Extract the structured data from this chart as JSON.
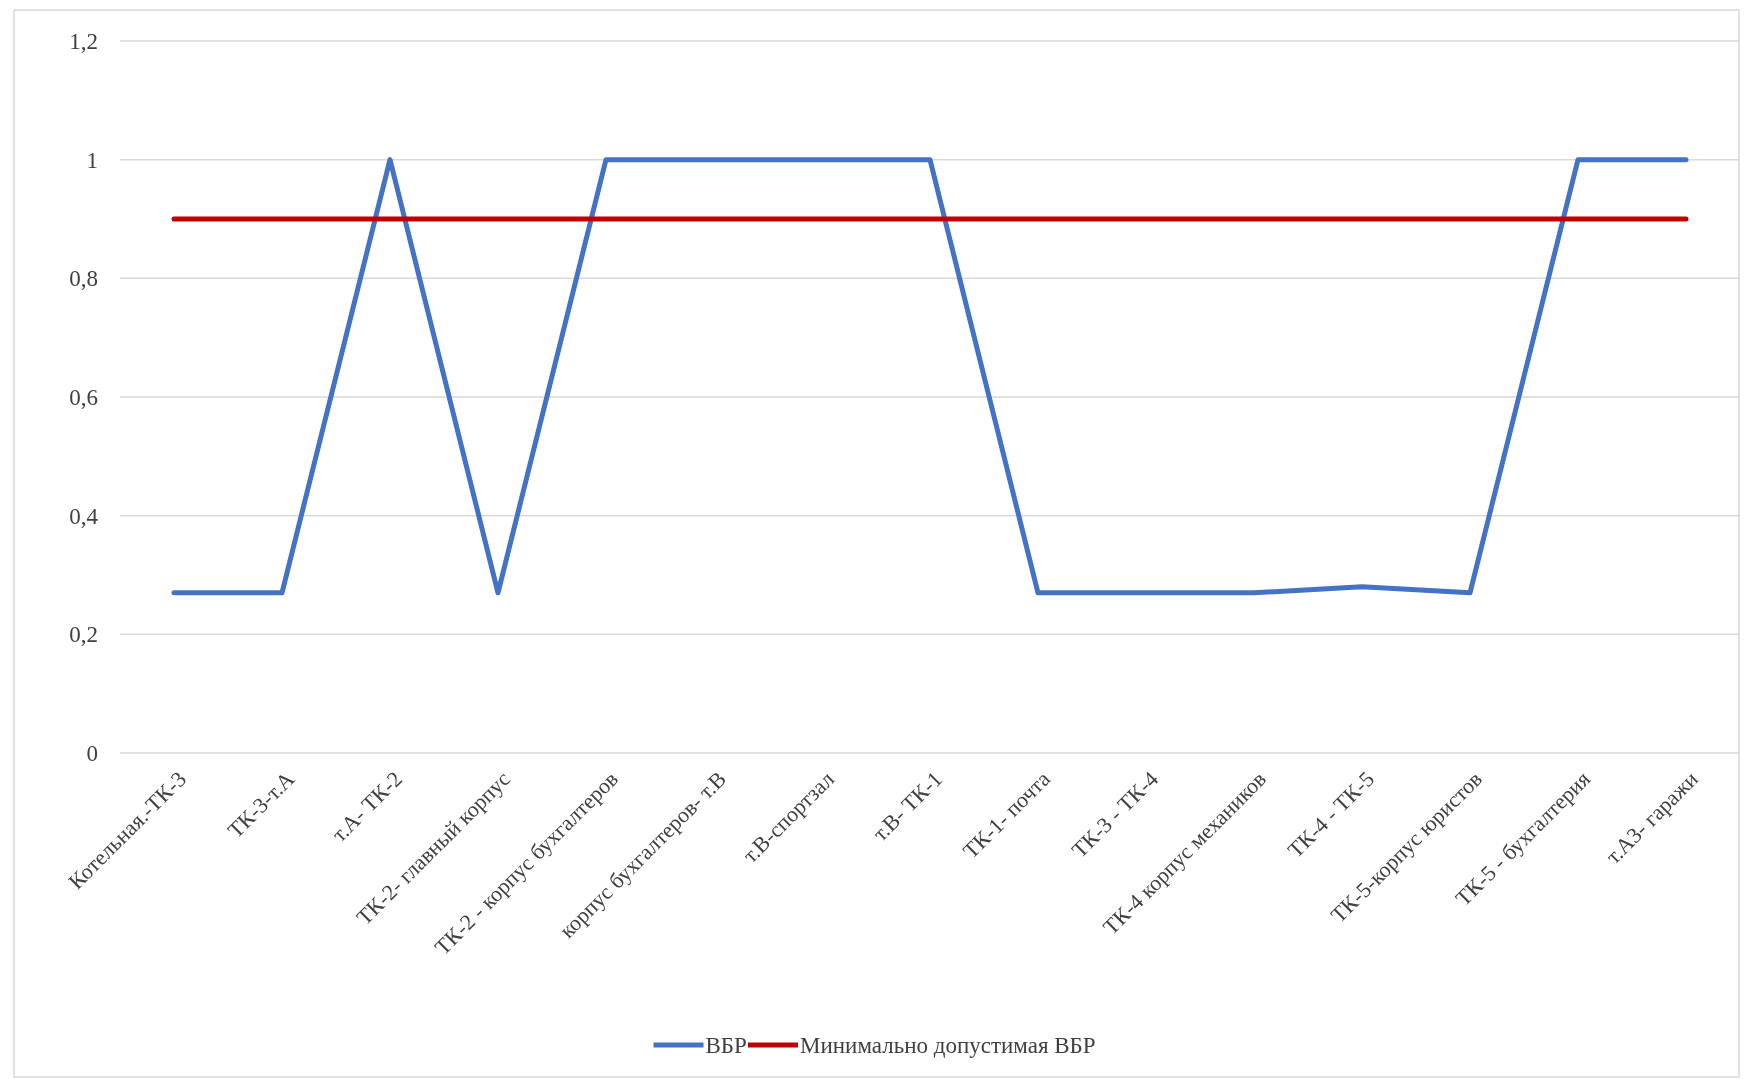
{
  "chart_data": {
    "type": "line",
    "categories": [
      "Котельная.-ТК-3",
      "ТК-3-т.А",
      "т.А- ТК-2",
      "ТК-2- главный корпус",
      "ТК-2 - корпус бухгалтеров",
      "корпус бухгалтеров- т.В",
      "т.В-спортзал",
      "т.В- ТК-1",
      "ТК-1- почта",
      "ТК-3 - ТК-4",
      "ТК-4 корпус механиков",
      "ТК-4 - ТК-5",
      "ТК-5-корпус юристов",
      "ТК-5 - бухгалтерия",
      "т.А3- гаражи"
    ],
    "series": [
      {
        "name": "ВБР",
        "color": "#4472c4",
        "values": [
          0.27,
          0.27,
          1,
          0.27,
          1,
          1,
          1,
          1,
          0.27,
          0.27,
          0.27,
          0.28,
          0.27,
          1,
          1
        ]
      },
      {
        "name": "Минимально допустимая ВБР",
        "color": "#c00000",
        "values": [
          0.9,
          0.9,
          0.9,
          0.9,
          0.9,
          0.9,
          0.9,
          0.9,
          0.9,
          0.9,
          0.9,
          0.9,
          0.9,
          0.9,
          0.9
        ]
      }
    ],
    "ylim": [
      0,
      1.2
    ],
    "yticks": [
      {
        "value": 0,
        "label": "0"
      },
      {
        "value": 0.2,
        "label": "0,2"
      },
      {
        "value": 0.4,
        "label": "0,4"
      },
      {
        "value": 0.6,
        "label": "0,6"
      },
      {
        "value": 0.8,
        "label": "0,8"
      },
      {
        "value": 1,
        "label": "1"
      },
      {
        "value": 1.2,
        "label": "1,2"
      }
    ],
    "grid": "y",
    "legend": "bottom",
    "marker": "none",
    "line_style": "solid"
  }
}
